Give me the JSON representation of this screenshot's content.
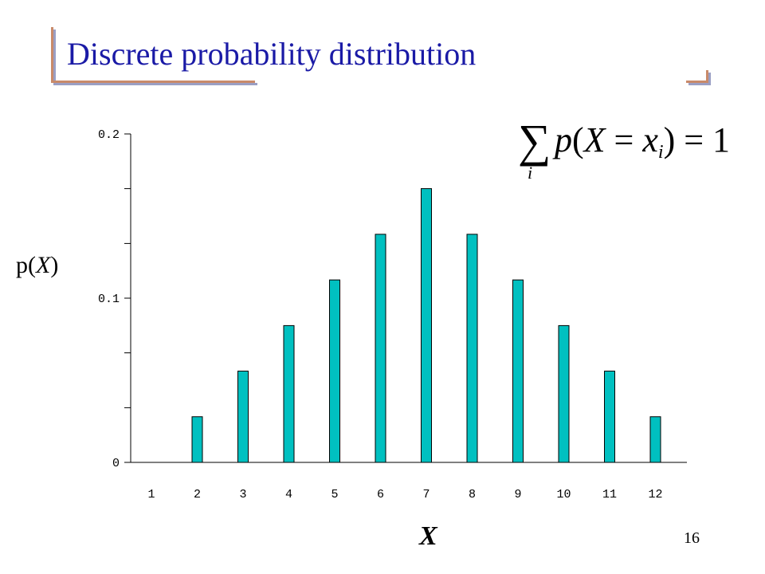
{
  "slide": {
    "title": "Discrete probability distribution",
    "page_number": "16"
  },
  "formula": {
    "sigma": "∑",
    "index": "i",
    "p": "p",
    "open": "(",
    "var": "X",
    "eq1": " = ",
    "x": "x",
    "x_sub": "i",
    "close": ")",
    "eq2": " = 1"
  },
  "axis_labels": {
    "y_prefix": "p(",
    "y_var": "X",
    "y_suffix": ")",
    "x": "X"
  },
  "colors": {
    "bar_fill": "#00c0c0",
    "bar_stroke": "#000000",
    "title": "#1a1aa6"
  },
  "chart_data": {
    "type": "bar",
    "title": "",
    "xlabel": "X",
    "ylabel": "p(X)",
    "categories": [
      "1",
      "2",
      "3",
      "4",
      "5",
      "6",
      "7",
      "8",
      "9",
      "10",
      "11",
      "12"
    ],
    "values": [
      0,
      0.0278,
      0.0556,
      0.0833,
      0.1111,
      0.1389,
      0.1667,
      0.1389,
      0.1111,
      0.0833,
      0.0556,
      0.0278
    ],
    "y_tick_labels": [
      "0",
      "0.1",
      "0.2"
    ],
    "y_tick_values": [
      0,
      0.1,
      0.2
    ],
    "y_minor_ticks": [
      0.0333,
      0.0667,
      0.1333,
      0.1667
    ],
    "ylim": [
      0,
      0.2
    ],
    "grid": false,
    "legend": "none"
  }
}
